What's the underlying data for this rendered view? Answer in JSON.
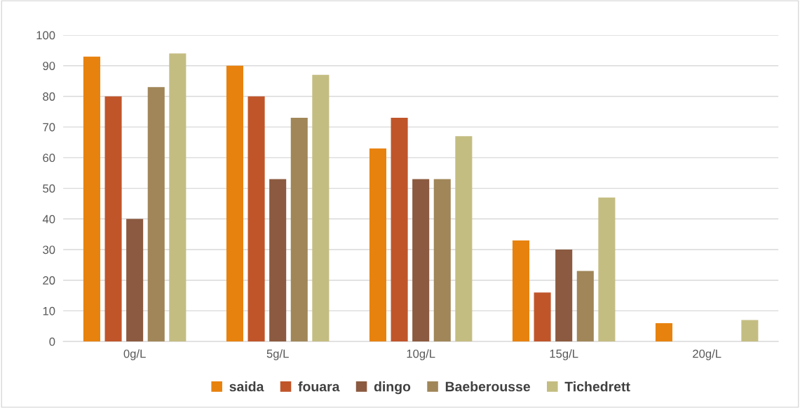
{
  "chart_data": {
    "type": "bar",
    "categories": [
      "0g/L",
      "5g/L",
      "10g/L",
      "15g/L",
      "20g/L"
    ],
    "series": [
      {
        "name": "saida",
        "color": "#e8820e",
        "values": [
          93,
          90,
          63,
          33,
          6
        ]
      },
      {
        "name": "fouara",
        "color": "#c0552a",
        "values": [
          80,
          80,
          73,
          16,
          0
        ]
      },
      {
        "name": "dingo",
        "color": "#8b5a40",
        "values": [
          40,
          53,
          53,
          30,
          0
        ]
      },
      {
        "name": "Baeberousse",
        "color": "#a08658",
        "values": [
          83,
          73,
          53,
          23,
          0
        ]
      },
      {
        "name": "Tichedrett",
        "color": "#c4bd82",
        "values": [
          94,
          87,
          67,
          47,
          7
        ]
      }
    ],
    "ylim": [
      0,
      100
    ],
    "yticks": [
      0,
      10,
      20,
      30,
      40,
      50,
      60,
      70,
      80,
      90,
      100
    ],
    "grid": "y",
    "legend": "bottom"
  }
}
